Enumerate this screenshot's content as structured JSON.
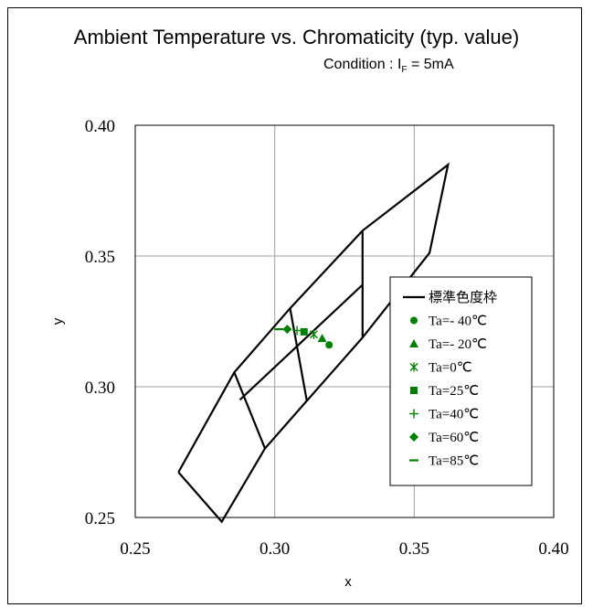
{
  "chart_data": {
    "type": "scatter",
    "title": "Ambient Temperature vs. Chromaticity (typ. value)",
    "subtitle_prefix": "Condition : I",
    "subtitle_sub": "F",
    "subtitle_suffix": " = 5mA",
    "xlabel": "x",
    "ylabel": "y",
    "xlim": [
      0.25,
      0.4
    ],
    "ylim": [
      0.25,
      0.4
    ],
    "xticks": [
      "0.25",
      "0.30",
      "0.35",
      "0.40"
    ],
    "yticks": [
      "0.25",
      "0.30",
      "0.35",
      "0.40"
    ],
    "grid": true,
    "legend_position": "right",
    "reference_series": {
      "name": "標準色度枠",
      "color": "#000000",
      "polylines": [
        [
          [
            0.2655,
            0.2673
          ],
          [
            0.281,
            0.2484
          ],
          [
            0.2965,
            0.2764
          ],
          [
            0.3115,
            0.2946
          ],
          [
            0.3315,
            0.3188
          ],
          [
            0.3555,
            0.3512
          ],
          [
            0.3621,
            0.3849
          ],
          [
            0.3315,
            0.3597
          ],
          [
            0.3055,
            0.33
          ],
          [
            0.2855,
            0.3055
          ],
          [
            0.2655,
            0.2673
          ]
        ],
        [
          [
            0.2855,
            0.3055
          ],
          [
            0.2965,
            0.2764
          ]
        ],
        [
          [
            0.3055,
            0.33
          ],
          [
            0.3115,
            0.2946
          ]
        ],
        [
          [
            0.3315,
            0.3597
          ],
          [
            0.3315,
            0.3188
          ]
        ],
        [
          [
            0.2875,
            0.295
          ],
          [
            0.3315,
            0.339
          ]
        ]
      ]
    },
    "series": [
      {
        "name": "Ta=- 40℃",
        "marker": "circle",
        "x": 0.3195,
        "y": 0.316
      },
      {
        "name": "Ta=- 20℃",
        "marker": "triangle",
        "x": 0.317,
        "y": 0.3185
      },
      {
        "name": "Ta=0℃",
        "marker": "asterisk",
        "x": 0.314,
        "y": 0.32
      },
      {
        "name": "Ta=25℃",
        "marker": "square",
        "x": 0.3105,
        "y": 0.321
      },
      {
        "name": "Ta=40℃",
        "marker": "plus",
        "x": 0.308,
        "y": 0.3215
      },
      {
        "name": "Ta=60℃",
        "marker": "diamond",
        "x": 0.3045,
        "y": 0.322
      },
      {
        "name": "Ta=85℃",
        "marker": "dash",
        "x": 0.3015,
        "y": 0.322
      }
    ],
    "series_color": "#008000"
  }
}
